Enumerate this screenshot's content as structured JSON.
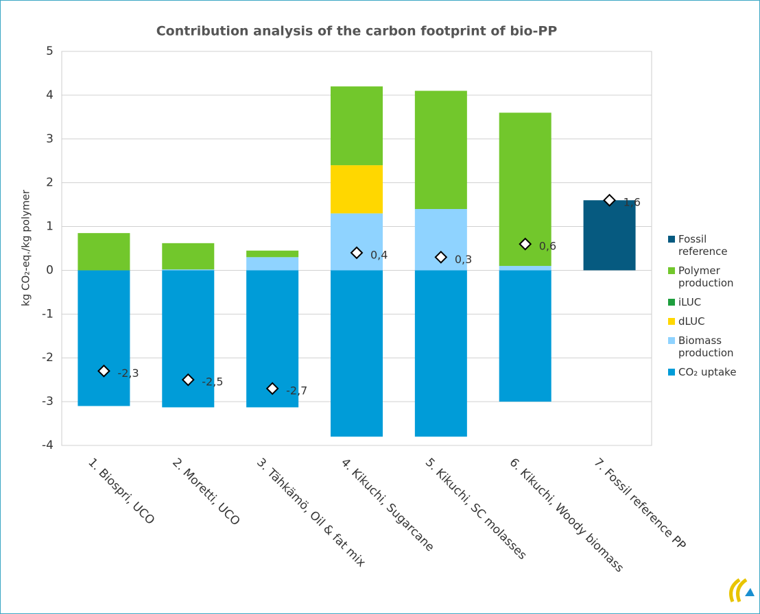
{
  "chart_data": {
    "type": "stacked_bar",
    "title": "Contribution analysis of the carbon footprint of bio-PP",
    "y_label": "kg CO₂-eq./kg polymer",
    "categories": [
      "1. Biospri, UCO",
      "2. Moretti,  UCO",
      "3. Tähkämö, Oil & fat mix",
      "4. Kikuchi, Sugarcane",
      "5. Kikuchi, SC molasses",
      "6. Kikuchi, Woody biomass",
      "7. Fossil reference PP"
    ],
    "series": [
      {
        "name": "Fossil reference",
        "color": "#065a80",
        "values": [
          0,
          0,
          0,
          0,
          0,
          0,
          1.6
        ]
      },
      {
        "name": "Polymer production",
        "color": "#72c72c",
        "values": [
          0.85,
          0.6,
          0.15,
          1.8,
          2.7,
          3.5,
          0
        ]
      },
      {
        "name": "iLUC",
        "color": "#1e9e3e",
        "values": [
          0,
          0,
          0,
          0,
          0,
          0,
          0
        ]
      },
      {
        "name": "dLUC",
        "color": "#ffd700",
        "values": [
          0,
          0,
          0,
          1.1,
          0,
          0,
          0
        ]
      },
      {
        "name": "Biomass production",
        "color": "#8fd3ff",
        "values": [
          0,
          0.02,
          0.3,
          1.3,
          1.4,
          0.1,
          0
        ]
      },
      {
        "name": "CO₂ uptake",
        "color": "#009cd8",
        "values": [
          -3.1,
          -3.13,
          -3.13,
          -3.8,
          -3.8,
          -3.0,
          0
        ]
      }
    ],
    "markers": {
      "values": [
        -2.3,
        -2.5,
        -2.7,
        0.4,
        0.3,
        0.6,
        1.6
      ],
      "value_labels": [
        "-2,3",
        "-2,5",
        "-2,7",
        "0,4",
        "0,3",
        "0,6",
        "1,6"
      ]
    },
    "ylim": [
      -4,
      5
    ],
    "yticks": [
      -4,
      -3,
      -2,
      -1,
      0,
      1,
      2,
      3,
      4,
      5
    ],
    "grid": true
  }
}
